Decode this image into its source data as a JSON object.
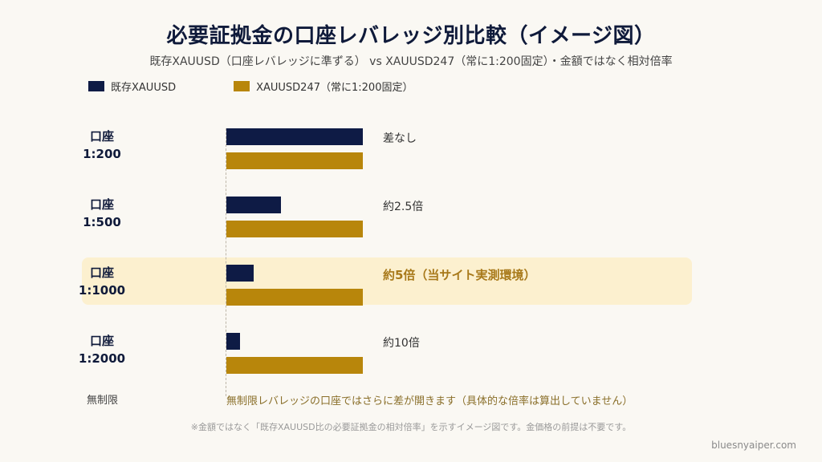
{
  "title": "必要証拠金の口座レバレッジ別比較（イメージ図）",
  "subtitle": "既存XAUUSD（口座レバレッジに準ずる） vs XAUUSD247（常に1:200固定）・金額ではなく相対倍率",
  "colors": {
    "existing": "#0e1b45",
    "fixed": "#b8860b",
    "highlight": "#fcf0cf",
    "emphasis_text": "#a8791a"
  },
  "chart_data": {
    "type": "bar",
    "orientation": "horizontal",
    "title": "必要証拠金の口座レバレッジ別比較（イメージ図）",
    "subtitle": "既存XAUUSD（口座レバレッジに準ずる） vs XAUUSD247（常に1:200固定）・金額ではなく相対倍率",
    "legend_position": "top-left",
    "grid": false,
    "categories": [
      "口座\n1:200",
      "口座\n1:500",
      "口座\n1:1000",
      "口座\n1:2000"
    ],
    "category_lines": [
      [
        "口座",
        "1:200"
      ],
      [
        "口座",
        "1:500"
      ],
      [
        "口座",
        "1:1000"
      ],
      [
        "口座",
        "1:2000"
      ]
    ],
    "series": [
      {
        "name": "既存XAUUSD",
        "values": [
          1,
          0.4,
          0.2,
          0.1
        ]
      },
      {
        "name": "XAUUSD247（常に1:200固定）",
        "values": [
          1,
          1,
          1,
          1
        ]
      }
    ],
    "xlim": [
      0,
      1
    ],
    "bar_annotations": [
      "差なし",
      "約2.5倍",
      "約5倍（当サイト実測環境）",
      "約10倍"
    ],
    "emphasized_index": 2
  },
  "unlimited": {
    "label": "無制限",
    "note": "無制限レバレッジの口座ではさらに差が開きます（具体的な倍率は算出していません）"
  },
  "footnote": "※金額ではなく「既存XAUUSD比の必要証拠金の相対倍率」を示すイメージ図です。金価格の前提は不要です。",
  "credit": "bluesnyaiper.com"
}
